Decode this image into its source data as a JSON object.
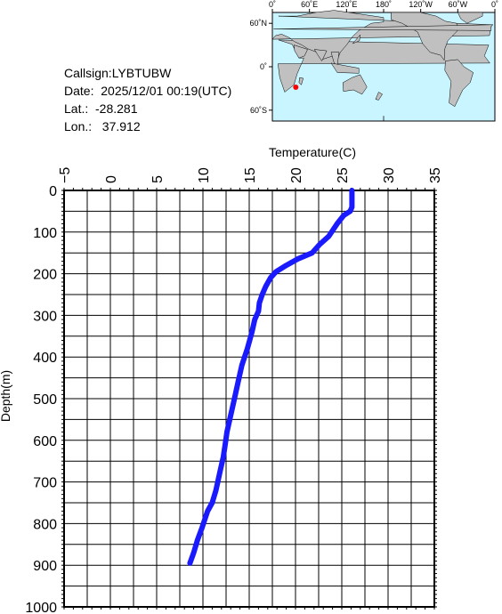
{
  "info": {
    "callsign": "Callsign:LYBTUBW",
    "date": "Date:  2025/12/01 00:19(UTC)",
    "lat": "Lat.:  -28.281",
    "lon": "Lon.:   37.912"
  },
  "map": {
    "top_labels": [
      "0˚",
      "60˚E",
      "120˚E",
      "180˚",
      "120˚W",
      "60˚W",
      "0˚"
    ],
    "left_labels": [
      "60˚N",
      "0˚",
      "60˚S"
    ],
    "ocean_color": "#c8f5ff",
    "land_color": "#c0c0c0",
    "marker_color": "#ff0000",
    "marker_lat": -28.281,
    "marker_lon": 37.912
  },
  "chart_data": {
    "type": "line",
    "title": "",
    "xlabel": "Temperature(C)",
    "ylabel": "Depth(m)",
    "xlim": [
      -5,
      35
    ],
    "ylim": [
      0,
      1000
    ],
    "y_inverted": true,
    "x_ticks": [
      -5,
      0,
      5,
      10,
      15,
      20,
      25,
      30,
      35
    ],
    "y_ticks": [
      0,
      100,
      200,
      300,
      400,
      500,
      600,
      700,
      800,
      900,
      1000
    ],
    "grid": true,
    "line_color": "#1a1aff",
    "series": [
      {
        "x": [
          26.1,
          26.1,
          25.9,
          25.2,
          24.5,
          23.6,
          22.6,
          21.8,
          20.2,
          19.0,
          17.9,
          17.3,
          16.8,
          16.4,
          16.1,
          16.0,
          15.6,
          15.3,
          14.8,
          14.2,
          13.8,
          13.4,
          13.0,
          12.6,
          12.4,
          12.2,
          11.8,
          11.4,
          11.0,
          10.5,
          10.2,
          9.9,
          9.4,
          9.0,
          8.6
        ],
        "y": [
          0,
          40,
          50,
          60,
          80,
          110,
          130,
          150,
          165,
          180,
          195,
          210,
          230,
          250,
          270,
          290,
          310,
          340,
          380,
          420,
          460,
          500,
          540,
          580,
          610,
          640,
          680,
          720,
          750,
          770,
          790,
          810,
          840,
          870,
          895
        ]
      }
    ]
  }
}
